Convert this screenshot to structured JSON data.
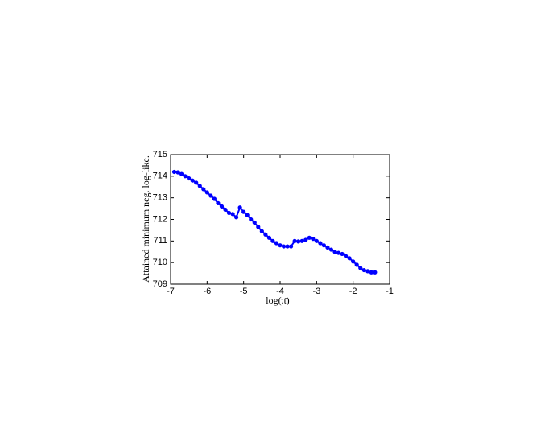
{
  "chart_data": {
    "type": "line",
    "xlabel": "log(π̄)",
    "ylabel": "Attained minimum neg. log-like.",
    "xlim": [
      -7,
      -1
    ],
    "xticks": [
      -7,
      -6,
      -5,
      -4,
      -3,
      -2,
      -1
    ],
    "ylim": [
      709,
      715
    ],
    "yticks": [
      709,
      710,
      711,
      712,
      713,
      714,
      715
    ],
    "x": [
      -6.9,
      -6.8,
      -6.7,
      -6.6,
      -6.5,
      -6.4,
      -6.3,
      -6.2,
      -6.1,
      -6.0,
      -5.9,
      -5.8,
      -5.7,
      -5.6,
      -5.5,
      -5.4,
      -5.3,
      -5.2,
      -5.1,
      -5.0,
      -4.9,
      -4.8,
      -4.7,
      -4.6,
      -4.5,
      -4.4,
      -4.3,
      -4.2,
      -4.1,
      -4.0,
      -3.9,
      -3.8,
      -3.7,
      -3.6,
      -3.5,
      -3.4,
      -3.3,
      -3.2,
      -3.1,
      -3.0,
      -2.9,
      -2.8,
      -2.7,
      -2.6,
      -2.5,
      -2.4,
      -2.3,
      -2.2,
      -2.1,
      -2.0,
      -1.9,
      -1.8,
      -1.7,
      -1.6,
      -1.5,
      -1.4
    ],
    "series": [
      {
        "color": "#0000ff",
        "values": [
          714.2,
          714.18,
          714.1,
          714.0,
          713.9,
          713.8,
          713.7,
          713.55,
          713.4,
          713.25,
          713.1,
          712.95,
          712.75,
          712.6,
          712.45,
          712.3,
          712.25,
          712.1,
          712.55,
          712.35,
          712.2,
          712.0,
          711.85,
          711.65,
          711.45,
          711.3,
          711.15,
          711.0,
          710.9,
          710.8,
          710.75,
          710.75,
          710.75,
          711.0,
          710.98,
          711.0,
          711.05,
          711.15,
          711.1,
          711.0,
          710.9,
          710.8,
          710.7,
          710.6,
          710.5,
          710.45,
          710.4,
          710.3,
          710.2,
          710.05,
          709.9,
          709.75,
          709.65,
          709.6,
          709.55,
          709.55
        ]
      }
    ]
  }
}
